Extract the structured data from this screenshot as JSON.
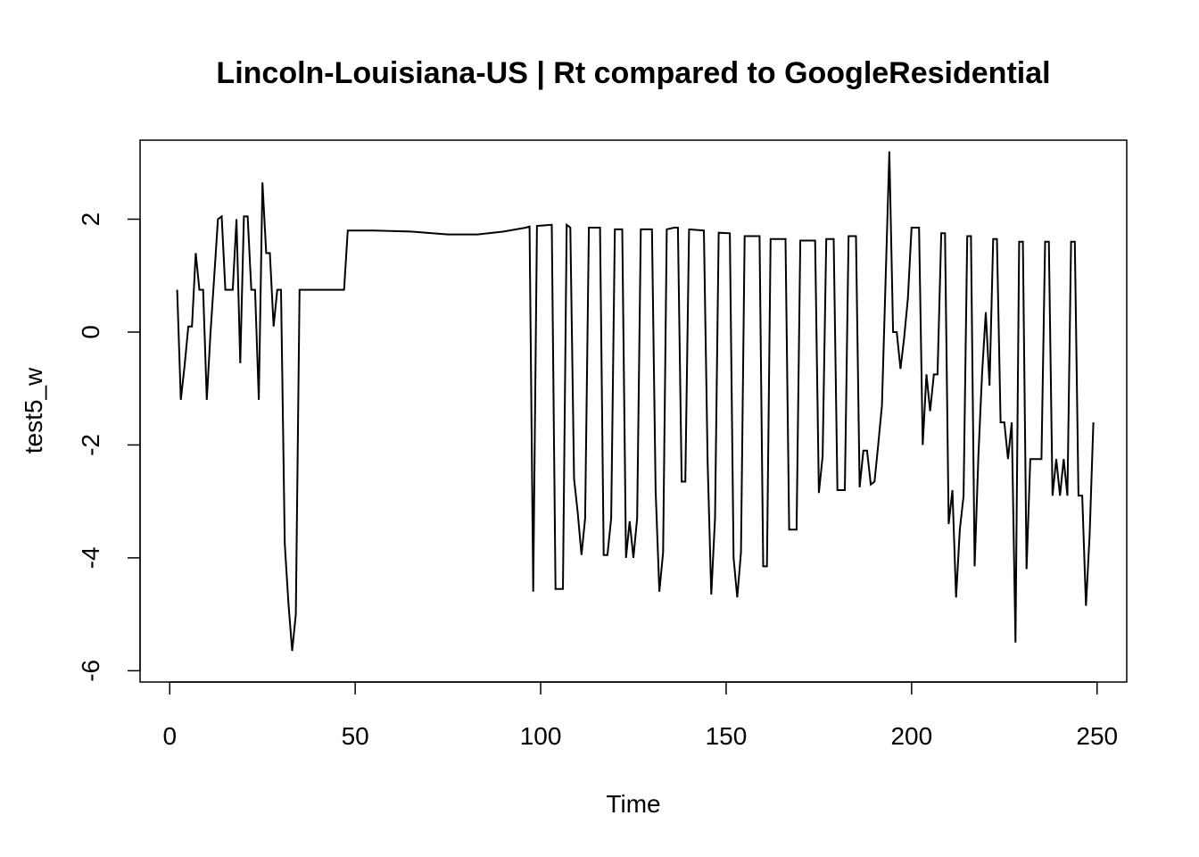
{
  "chart_data": {
    "type": "line",
    "title": "Lincoln-Louisiana-US | Rt compared to GoogleResidential",
    "xlabel": "Time",
    "ylabel": "test5_w",
    "xlim": [
      -8,
      258
    ],
    "ylim": [
      -6.2,
      3.4
    ],
    "x_ticks": [
      0,
      50,
      100,
      150,
      200,
      250
    ],
    "y_ticks": [
      -6,
      -4,
      -2,
      0,
      2
    ],
    "grid": false,
    "legend": "none",
    "line_color": "#000000",
    "series": [
      {
        "points": [
          [
            2,
            0.75
          ],
          [
            3,
            -1.2
          ],
          [
            4,
            -0.6
          ],
          [
            5,
            0.1
          ],
          [
            6,
            0.1
          ],
          [
            7,
            1.4
          ],
          [
            8,
            0.75
          ],
          [
            9,
            0.75
          ],
          [
            10,
            -1.2
          ],
          [
            11,
            0.0
          ],
          [
            12,
            1.0
          ],
          [
            13,
            2.0
          ],
          [
            14,
            2.05
          ],
          [
            15,
            0.75
          ],
          [
            16,
            0.75
          ],
          [
            17,
            0.75
          ],
          [
            18,
            2.0
          ],
          [
            19,
            -0.55
          ],
          [
            20,
            2.05
          ],
          [
            21,
            2.05
          ],
          [
            22,
            0.75
          ],
          [
            23,
            0.75
          ],
          [
            24,
            -1.2
          ],
          [
            25,
            2.65
          ],
          [
            26,
            1.4
          ],
          [
            27,
            1.4
          ],
          [
            28,
            0.1
          ],
          [
            29,
            0.75
          ],
          [
            30,
            0.75
          ],
          [
            31,
            -3.75
          ],
          [
            32,
            -4.8
          ],
          [
            33,
            -5.65
          ],
          [
            34,
            -5.0
          ],
          [
            35,
            0.75
          ],
          [
            47,
            0.75
          ],
          [
            48,
            1.8
          ],
          [
            55,
            1.8
          ],
          [
            65,
            1.78
          ],
          [
            75,
            1.73
          ],
          [
            83,
            1.73
          ],
          [
            90,
            1.78
          ],
          [
            96,
            1.85
          ],
          [
            97,
            1.87
          ],
          [
            98,
            -4.6
          ],
          [
            99,
            1.88
          ],
          [
            103,
            1.9
          ],
          [
            104,
            -4.55
          ],
          [
            106,
            -4.55
          ],
          [
            107,
            1.9
          ],
          [
            108,
            1.85
          ],
          [
            109,
            -2.6
          ],
          [
            110,
            -3.2
          ],
          [
            111,
            -3.95
          ],
          [
            112,
            -3.3
          ],
          [
            113,
            1.85
          ],
          [
            116,
            1.85
          ],
          [
            117,
            -3.95
          ],
          [
            118,
            -3.95
          ],
          [
            119,
            -3.3
          ],
          [
            120,
            1.82
          ],
          [
            122,
            1.82
          ],
          [
            123,
            -4.0
          ],
          [
            124,
            -3.35
          ],
          [
            125,
            -4.0
          ],
          [
            126,
            -3.3
          ],
          [
            127,
            1.82
          ],
          [
            130,
            1.82
          ],
          [
            131,
            -2.8
          ],
          [
            132,
            -4.6
          ],
          [
            133,
            -3.9
          ],
          [
            134,
            1.82
          ],
          [
            136,
            1.85
          ],
          [
            137,
            1.85
          ],
          [
            138,
            -2.65
          ],
          [
            139,
            -2.65
          ],
          [
            140,
            1.82
          ],
          [
            144,
            1.8
          ],
          [
            145,
            -2.3
          ],
          [
            146,
            -4.65
          ],
          [
            147,
            -3.3
          ],
          [
            148,
            1.76
          ],
          [
            151,
            1.75
          ],
          [
            152,
            -4.0
          ],
          [
            153,
            -4.7
          ],
          [
            154,
            -3.9
          ],
          [
            155,
            1.7
          ],
          [
            159,
            1.7
          ],
          [
            160,
            -4.15
          ],
          [
            161,
            -4.15
          ],
          [
            162,
            1.65
          ],
          [
            166,
            1.65
          ],
          [
            167,
            -3.5
          ],
          [
            169,
            -3.5
          ],
          [
            170,
            1.62
          ],
          [
            174,
            1.62
          ],
          [
            175,
            -2.85
          ],
          [
            176,
            -2.2
          ],
          [
            177,
            1.65
          ],
          [
            179,
            1.65
          ],
          [
            180,
            -2.8
          ],
          [
            182,
            -2.8
          ],
          [
            183,
            1.7
          ],
          [
            185,
            1.7
          ],
          [
            186,
            -2.75
          ],
          [
            187,
            -2.1
          ],
          [
            188,
            -2.1
          ],
          [
            189,
            -2.7
          ],
          [
            190,
            -2.65
          ],
          [
            191,
            -2.0
          ],
          [
            192,
            -1.3
          ],
          [
            194,
            3.2
          ],
          [
            195,
            0.0
          ],
          [
            196,
            0.0
          ],
          [
            197,
            -0.65
          ],
          [
            198,
            -0.1
          ],
          [
            199,
            0.6
          ],
          [
            200,
            1.85
          ],
          [
            202,
            1.85
          ],
          [
            203,
            -2.0
          ],
          [
            204,
            -0.75
          ],
          [
            205,
            -1.4
          ],
          [
            206,
            -0.75
          ],
          [
            207,
            -0.75
          ],
          [
            208,
            1.75
          ],
          [
            209,
            1.75
          ],
          [
            210,
            -3.4
          ],
          [
            211,
            -2.8
          ],
          [
            212,
            -4.7
          ],
          [
            213,
            -3.5
          ],
          [
            214,
            -2.9
          ],
          [
            215,
            1.7
          ],
          [
            216,
            1.7
          ],
          [
            217,
            -4.15
          ],
          [
            218,
            -2.2
          ],
          [
            219,
            -0.75
          ],
          [
            220,
            0.35
          ],
          [
            221,
            -0.95
          ],
          [
            222,
            1.65
          ],
          [
            223,
            1.65
          ],
          [
            224,
            -1.6
          ],
          [
            225,
            -1.6
          ],
          [
            226,
            -2.25
          ],
          [
            227,
            -1.6
          ],
          [
            228,
            -5.5
          ],
          [
            229,
            1.6
          ],
          [
            230,
            1.6
          ],
          [
            231,
            -4.2
          ],
          [
            232,
            -2.25
          ],
          [
            235,
            -2.25
          ],
          [
            236,
            1.6
          ],
          [
            237,
            1.6
          ],
          [
            238,
            -2.9
          ],
          [
            239,
            -2.25
          ],
          [
            240,
            -2.9
          ],
          [
            241,
            -2.25
          ],
          [
            242,
            -2.9
          ],
          [
            243,
            1.6
          ],
          [
            244,
            1.6
          ],
          [
            245,
            -2.9
          ],
          [
            246,
            -2.9
          ],
          [
            247,
            -4.85
          ],
          [
            248,
            -3.6
          ],
          [
            249,
            -1.6
          ]
        ]
      }
    ]
  }
}
